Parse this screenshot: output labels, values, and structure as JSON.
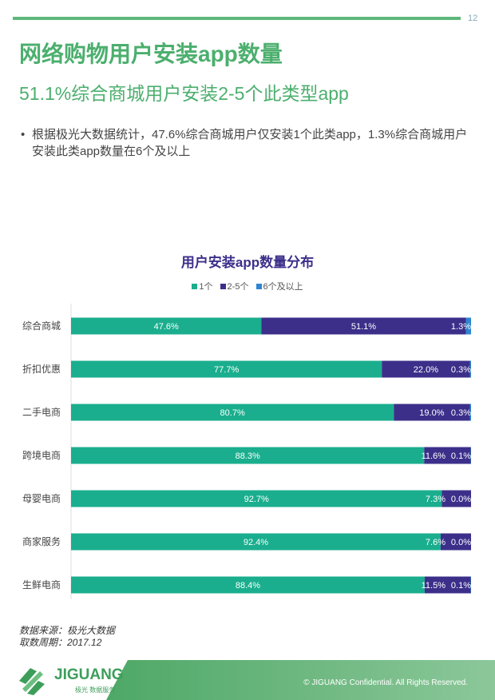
{
  "page_number": "12",
  "title": "网络购物用户安装app数量",
  "subtitle": "51.1%综合商城用户安装2-5个此类型app",
  "bullet": "根据极光大数据统计，47.6%综合商城用户仅安装1个此类app，1.3%综合商城用户安装此类app数量在6个及以上",
  "watermark": {
    "text": "JIGUANG",
    "sub": "极光 数据服务"
  },
  "colors": {
    "one": "#1aae8e",
    "two_five": "#3c2f8a",
    "six_plus": "#2e86d1",
    "green": "#4caf6e"
  },
  "chart_data": {
    "type": "bar",
    "orientation": "horizontal-stacked-100",
    "title": "用户安装app数量分布",
    "legend_position": "top",
    "categories": [
      "综合商城",
      "折扣优惠",
      "二手电商",
      "跨境电商",
      "母婴电商",
      "商家服务",
      "生鲜电商"
    ],
    "series": [
      {
        "name": "1个",
        "values": [
          47.6,
          77.7,
          80.7,
          88.3,
          92.7,
          92.4,
          88.4
        ]
      },
      {
        "name": "2-5个",
        "values": [
          51.1,
          22.0,
          19.0,
          11.6,
          7.3,
          7.6,
          11.5
        ]
      },
      {
        "name": "6个及以上",
        "values": [
          1.3,
          0.3,
          0.3,
          0.1,
          0.0,
          0.0,
          0.1
        ]
      }
    ],
    "xlim": [
      0,
      100
    ]
  },
  "source": {
    "line1": "数据来源：极光大数据",
    "line2": "取数周期：2017.12"
  },
  "footer": {
    "logo": "JIGUANG",
    "logo_sub": "极光 数据服务",
    "copyright": "© JIGUANG Confidential. All Rights Reserved."
  }
}
